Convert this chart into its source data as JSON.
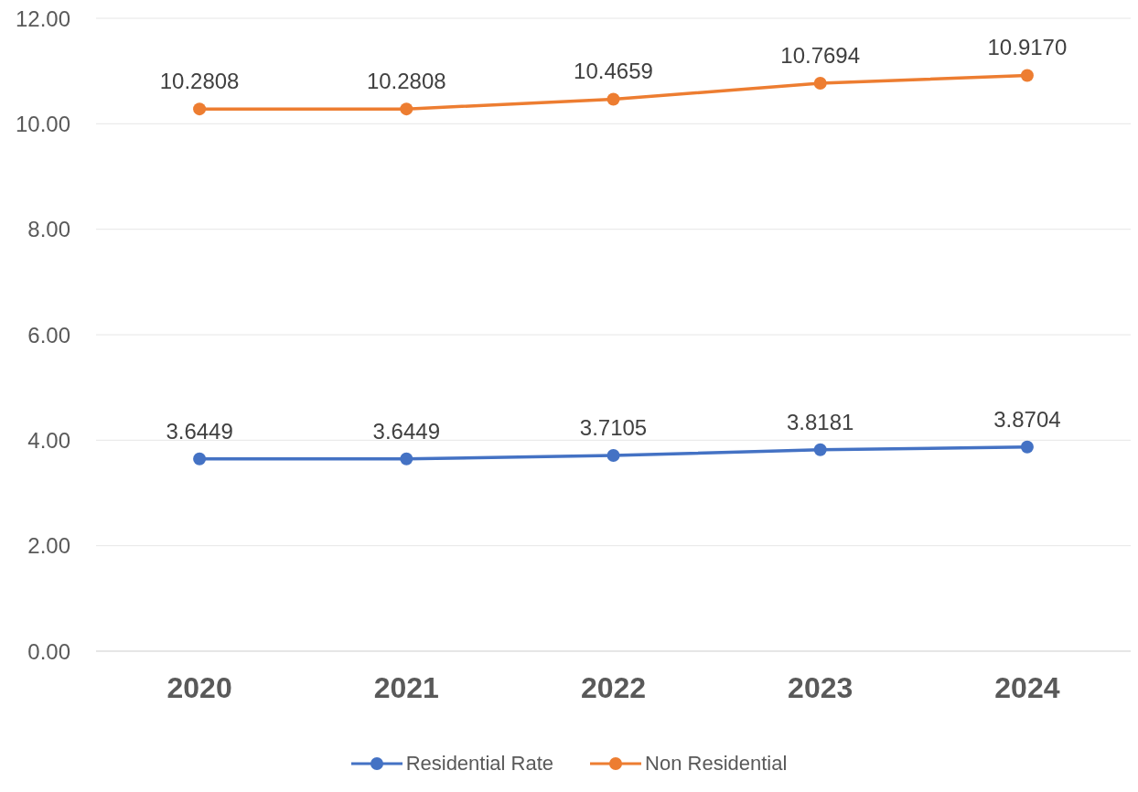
{
  "chart_data": {
    "type": "line",
    "categories": [
      "2020",
      "2021",
      "2022",
      "2023",
      "2024"
    ],
    "series": [
      {
        "name": "Residential Rate",
        "color": "#4472c4",
        "values": [
          3.6449,
          3.6449,
          3.7105,
          3.8181,
          3.8704
        ],
        "value_labels": [
          "3.6449",
          "3.6449",
          "3.7105",
          "3.8181",
          "3.8704"
        ]
      },
      {
        "name": "Non Residential",
        "color": "#ed7d31",
        "values": [
          10.2808,
          10.2808,
          10.4659,
          10.7694,
          10.917
        ],
        "value_labels": [
          "10.2808",
          "10.2808",
          "10.4659",
          "10.7694",
          "10.9170"
        ]
      }
    ],
    "ylim": [
      0,
      12
    ],
    "yticks": [
      {
        "value": 0,
        "label": "0.00"
      },
      {
        "value": 2,
        "label": "2.00"
      },
      {
        "value": 4,
        "label": "4.00"
      },
      {
        "value": 6,
        "label": "6.00"
      },
      {
        "value": 8,
        "label": "8.00"
      },
      {
        "value": 10,
        "label": "10.00"
      },
      {
        "value": 12,
        "label": "12.00"
      }
    ],
    "grid": "y",
    "legend": "bottom",
    "marker": "circle",
    "line_style": "solid"
  }
}
